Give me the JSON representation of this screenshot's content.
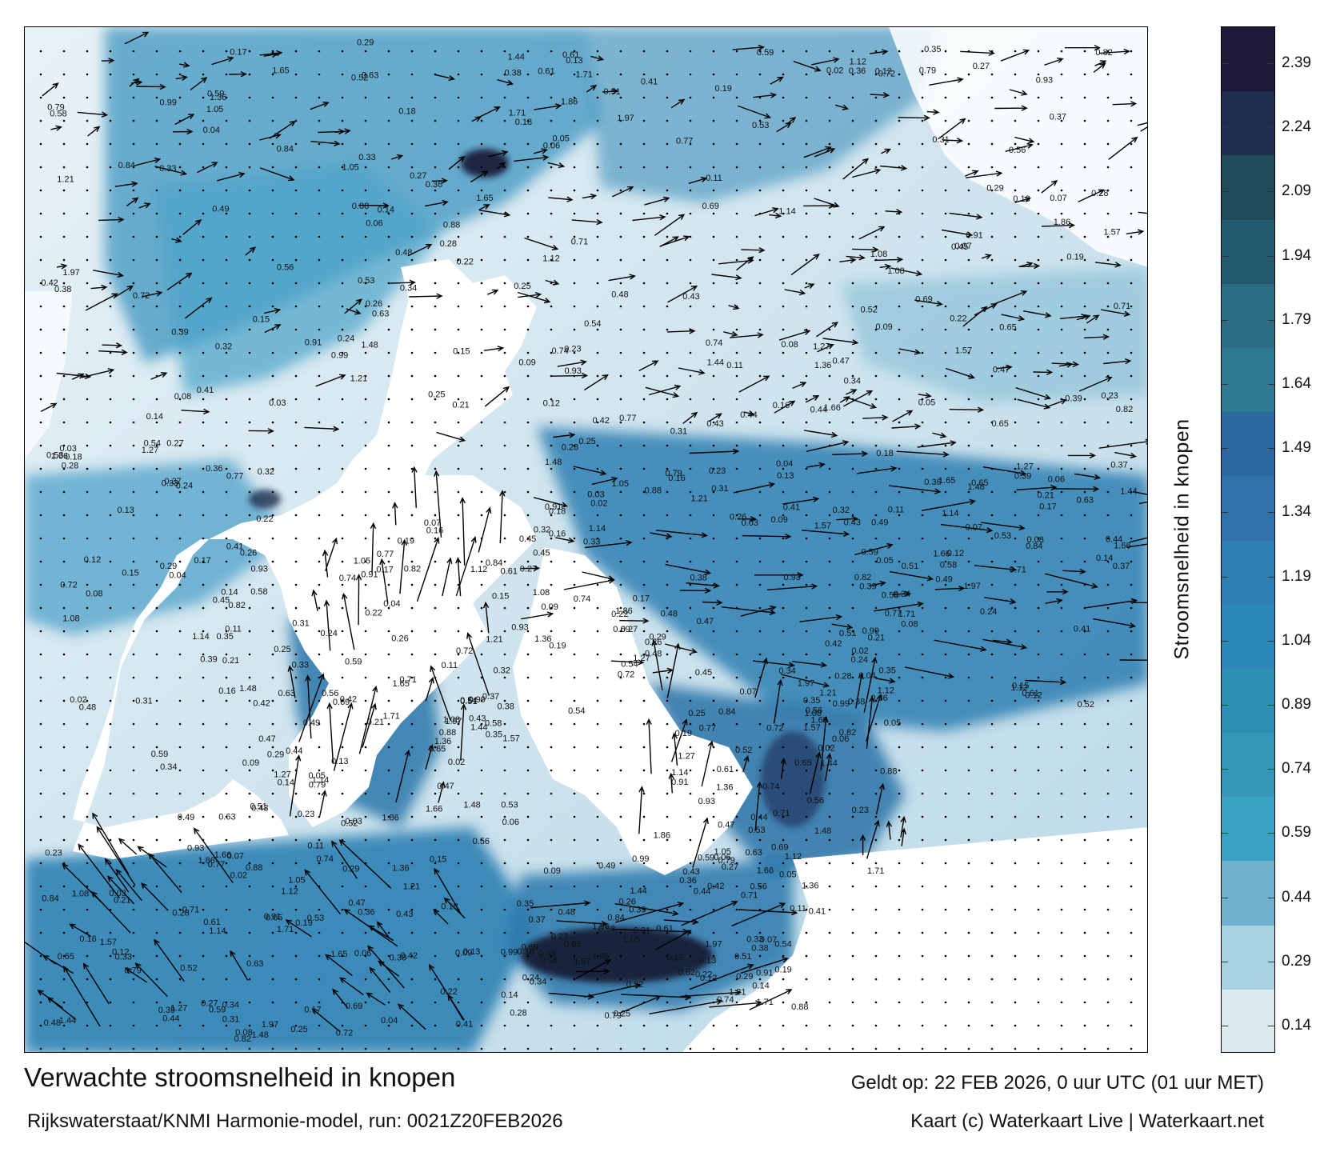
{
  "title": "Verwachte stroomsnelheid in knopen",
  "subtitle": "Rijkswaterstaat/KNMI Harmonie-model, run: 0021Z20FEB2026",
  "valid_time": "Geldt op: 22 FEB 2026, 0 uur UTC (01 uur MET)",
  "credit": "Kaart (c) Waterkaart Live | Waterkaart.net",
  "colorbar": {
    "label": "Stroomsnelheid in knopen",
    "ticks": [
      "2.39",
      "2.24",
      "2.09",
      "1.94",
      "1.79",
      "1.64",
      "1.49",
      "1.34",
      "1.19",
      "1.04",
      "0.89",
      "0.74",
      "0.59",
      "0.44",
      "0.29",
      "0.14"
    ],
    "bands": [
      "#1c1a38",
      "#1e2e4e",
      "#1f4a5a",
      "#235b6e",
      "#2a6d84",
      "#2e7a92",
      "#2e68a0",
      "#2f73aa",
      "#2e7db3",
      "#2c86b6",
      "#2e8fb4",
      "#3497b8",
      "#39a2c2",
      "#6fb3cf",
      "#a8d1e2",
      "#dcebf2"
    ]
  },
  "colors": {
    "land": "#ffffff",
    "sea_light": "#d4e8f1",
    "sea_mid": "#5aa7c8",
    "sea_deep": "#2a7aa6",
    "strong_current": "#151a35",
    "arrow": "#000000"
  },
  "speed_labels": [
    "0.28",
    "0.41",
    "0.48",
    "0.39",
    "0.34",
    "0.36",
    "0.18",
    "0.12",
    "0.08",
    "0.09",
    "0.13",
    "0.15",
    "0.14",
    "0.11",
    "0.22",
    "0.27",
    "0.33",
    "0.29",
    "0.31",
    "0.42",
    "0.44",
    "0.52",
    "0.56",
    "0.65",
    "0.61",
    "0.69",
    "0.71",
    "0.74",
    "0.79",
    "0.84",
    "0.88",
    "0.91",
    "0.99",
    "1.05",
    "1.12",
    "1.21",
    "1.36",
    "1.44",
    "1.57",
    "1.65",
    "1.71",
    "1.86",
    "1.97",
    "0.05",
    "0.06",
    "0.07",
    "0.19",
    "0.23",
    "0.25",
    "0.38",
    "0.43",
    "0.47",
    "0.53",
    "0.59",
    "0.63",
    "0.72",
    "0.77",
    "0.82",
    "0.93",
    "1.08",
    "1.14",
    "1.27",
    "1.48",
    "1.66",
    "0.02",
    "0.03",
    "0.04",
    "0.16",
    "0.17",
    "0.21",
    "0.24",
    "0.26",
    "0.32",
    "0.35",
    "0.37",
    "0.45",
    "0.49",
    "0.51",
    "0.54",
    "0.58"
  ]
}
